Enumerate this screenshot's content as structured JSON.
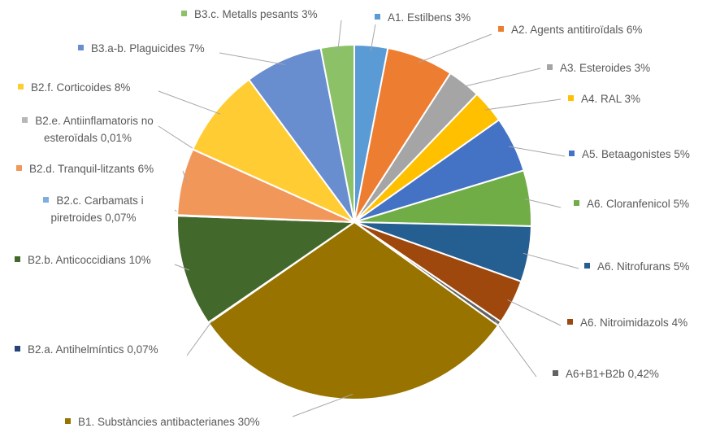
{
  "chart_data": {
    "type": "pie",
    "categories": [
      "A1. Estilbens",
      "A2. Agents antitiroïdals",
      "A3. Esteroides",
      "A4. RAL",
      "A5. Betaagonistes",
      "A6. Cloranfenicol",
      "A6. Nitrofurans",
      "A6. Nitroimidazols",
      "A6+B1+B2b",
      "B1. Substàncies antibacterianes",
      "B2.a. Antihelmíntics",
      "B2.b. Anticoccidians",
      "B2.c. Carbamats i piretroides",
      "B2.d. Tranquil-litzants",
      "B2.e. Antiinflamatoris no esteroïdals",
      "B2.f. Corticoides",
      "B3.a-b. Plaguicides",
      "B3.c. Metalls pesants"
    ],
    "values": [
      3,
      6,
      3,
      3,
      5,
      5,
      5,
      4,
      0.42,
      30,
      0.07,
      10,
      0.07,
      6,
      0.01,
      8,
      7,
      3
    ],
    "value_labels": [
      "3%",
      "6%",
      "3%",
      "3%",
      "5%",
      "5%",
      "5%",
      "4%",
      "0,42%",
      "30%",
      "0,07%",
      "10%",
      "0,07%",
      "6%",
      "0,01%",
      "8%",
      "7%",
      "3%"
    ],
    "colors": [
      "#5b9bd5",
      "#ed7d31",
      "#a5a5a5",
      "#ffc000",
      "#4472c4",
      "#70ad47",
      "#255e91",
      "#9e480e",
      "#636363",
      "#997300",
      "#264478",
      "#43682b",
      "#7cafdd",
      "#f1975a",
      "#b7b7b7",
      "#ffcd33",
      "#698ed0",
      "#8cc168"
    ]
  }
}
